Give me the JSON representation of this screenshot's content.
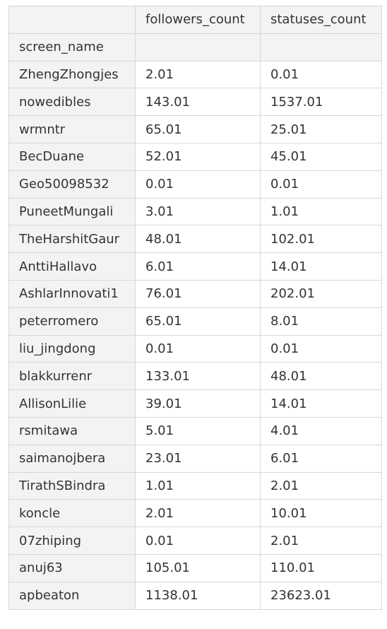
{
  "table": {
    "columns": [
      "",
      "followers_count",
      "statuses_count"
    ],
    "index_name": "screen_name",
    "rows": [
      {
        "name": "ZhengZhongjes",
        "followers_count": "2.01",
        "statuses_count": "0.01"
      },
      {
        "name": "nowedibles",
        "followers_count": "143.01",
        "statuses_count": "1537.01"
      },
      {
        "name": "wrmntr",
        "followers_count": "65.01",
        "statuses_count": "25.01"
      },
      {
        "name": "BecDuane",
        "followers_count": "52.01",
        "statuses_count": "45.01"
      },
      {
        "name": "Geo50098532",
        "followers_count": "0.01",
        "statuses_count": "0.01"
      },
      {
        "name": "PuneetMungali",
        "followers_count": "3.01",
        "statuses_count": "1.01"
      },
      {
        "name": "TheHarshitGaur",
        "followers_count": "48.01",
        "statuses_count": "102.01"
      },
      {
        "name": "AnttiHallavo",
        "followers_count": "6.01",
        "statuses_count": "14.01"
      },
      {
        "name": "AshlarInnovati1",
        "followers_count": "76.01",
        "statuses_count": "202.01"
      },
      {
        "name": "peterromero",
        "followers_count": "65.01",
        "statuses_count": "8.01"
      },
      {
        "name": "liu_jingdong",
        "followers_count": "0.01",
        "statuses_count": "0.01"
      },
      {
        "name": "blakkurrenr",
        "followers_count": "133.01",
        "statuses_count": "48.01"
      },
      {
        "name": "AllisonLilie",
        "followers_count": "39.01",
        "statuses_count": "14.01"
      },
      {
        "name": "rsmitawa",
        "followers_count": "5.01",
        "statuses_count": "4.01"
      },
      {
        "name": "saimanojbera",
        "followers_count": "23.01",
        "statuses_count": "6.01"
      },
      {
        "name": "TirathSBindra",
        "followers_count": "1.01",
        "statuses_count": "2.01"
      },
      {
        "name": "koncle",
        "followers_count": "2.01",
        "statuses_count": "10.01"
      },
      {
        "name": "07zhiping",
        "followers_count": "0.01",
        "statuses_count": "2.01"
      },
      {
        "name": "anuj63",
        "followers_count": "105.01",
        "statuses_count": "110.01"
      },
      {
        "name": "apbeaton",
        "followers_count": "1138.01",
        "statuses_count": "23623.01"
      }
    ]
  }
}
